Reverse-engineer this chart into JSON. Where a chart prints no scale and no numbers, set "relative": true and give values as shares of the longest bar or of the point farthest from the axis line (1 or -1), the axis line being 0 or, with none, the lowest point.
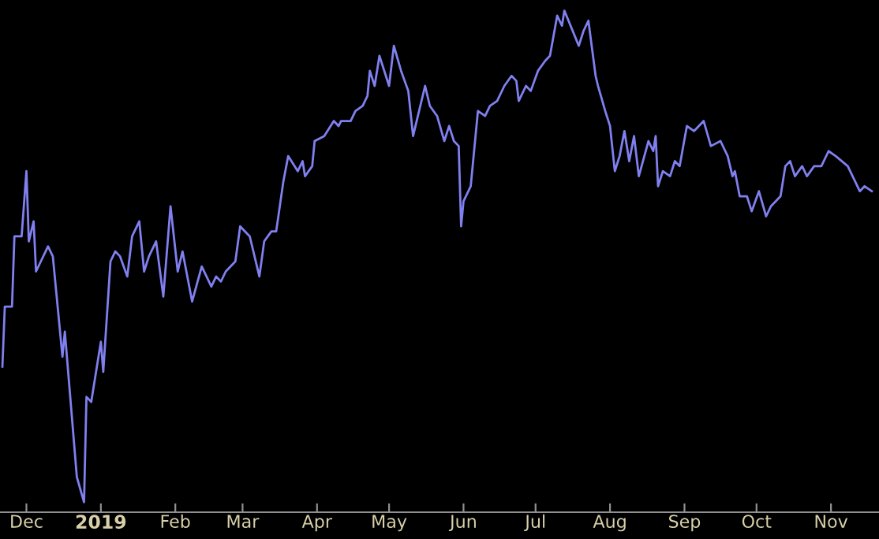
{
  "chart_data": {
    "type": "line",
    "relative": true,
    "color": "#8080f0",
    "grid": false,
    "legend": false,
    "tick_labels": "x",
    "line_style": "solid",
    "marker": "none",
    "xlim": [
      "2018-11-20",
      "2019-11-21"
    ],
    "xticks": [
      {
        "value": "2018-12-01",
        "label": "Dec"
      },
      {
        "value": "2019-01-01",
        "label": "2019"
      },
      {
        "value": "2019-02-01",
        "label": "Feb"
      },
      {
        "value": "2019-03-01",
        "label": "Mar"
      },
      {
        "value": "2019-04-01",
        "label": "Apr"
      },
      {
        "value": "2019-05-01",
        "label": "May"
      },
      {
        "value": "2019-06-01",
        "label": "Jun"
      },
      {
        "value": "2019-07-01",
        "label": "Jul"
      },
      {
        "value": "2019-08-01",
        "label": "Aug"
      },
      {
        "value": "2019-09-01",
        "label": "Sep"
      },
      {
        "value": "2019-10-01",
        "label": "Oct"
      },
      {
        "value": "2019-11-01",
        "label": "Nov"
      }
    ],
    "x": [
      "2018-11-21",
      "2018-11-22",
      "2018-11-25",
      "2018-11-26",
      "2018-11-29",
      "2018-12-01",
      "2018-12-02",
      "2018-12-04",
      "2018-12-05",
      "2018-12-07",
      "2018-12-10",
      "2018-12-12",
      "2018-12-16",
      "2018-12-17",
      "2018-12-22",
      "2018-12-25",
      "2018-12-26",
      "2018-12-28",
      "2019-01-01",
      "2019-01-02",
      "2019-01-05",
      "2019-01-07",
      "2019-01-09",
      "2019-01-12",
      "2019-01-14",
      "2019-01-17",
      "2019-01-19",
      "2019-01-21",
      "2019-01-24",
      "2019-01-27",
      "2019-01-30",
      "2019-02-02",
      "2019-02-04",
      "2019-02-08",
      "2019-02-12",
      "2019-02-16",
      "2019-02-18",
      "2019-02-20",
      "2019-02-22",
      "2019-02-26",
      "2019-02-28",
      "2019-03-04",
      "2019-03-08",
      "2019-03-10",
      "2019-03-13",
      "2019-03-15",
      "2019-03-18",
      "2019-03-20",
      "2019-03-24",
      "2019-03-26",
      "2019-03-27",
      "2019-03-30",
      "2019-03-31",
      "2019-04-04",
      "2019-04-08",
      "2019-04-10",
      "2019-04-11",
      "2019-04-15",
      "2019-04-17",
      "2019-04-20",
      "2019-04-22",
      "2019-04-23",
      "2019-04-25",
      "2019-04-27",
      "2019-05-01",
      "2019-05-03",
      "2019-05-06",
      "2019-05-09",
      "2019-05-11",
      "2019-05-16",
      "2019-05-18",
      "2019-05-21",
      "2019-05-24",
      "2019-05-26",
      "2019-05-28",
      "2019-05-30",
      "2019-05-31",
      "2019-06-01",
      "2019-06-04",
      "2019-06-07",
      "2019-06-10",
      "2019-06-12",
      "2019-06-15",
      "2019-06-18",
      "2019-06-21",
      "2019-06-23",
      "2019-06-24",
      "2019-06-27",
      "2019-06-29",
      "2019-07-02",
      "2019-07-05",
      "2019-07-07",
      "2019-07-10",
      "2019-07-12",
      "2019-07-13",
      "2019-07-19",
      "2019-07-21",
      "2019-07-23",
      "2019-07-26",
      "2019-07-27",
      "2019-07-30",
      "2019-08-01",
      "2019-08-03",
      "2019-08-05",
      "2019-08-07",
      "2019-08-09",
      "2019-08-11",
      "2019-08-13",
      "2019-08-17",
      "2019-08-19",
      "2019-08-20",
      "2019-08-21",
      "2019-08-23",
      "2019-08-26",
      "2019-08-28",
      "2019-08-30",
      "2019-09-02",
      "2019-09-05",
      "2019-09-09",
      "2019-09-12",
      "2019-09-16",
      "2019-09-19",
      "2019-09-21",
      "2019-09-22",
      "2019-09-24",
      "2019-09-27",
      "2019-09-29",
      "2019-10-02",
      "2019-10-05",
      "2019-10-07",
      "2019-10-11",
      "2019-10-13",
      "2019-10-15",
      "2019-10-17",
      "2019-10-20",
      "2019-10-22",
      "2019-10-25",
      "2019-10-28",
      "2019-10-31",
      "2019-11-03",
      "2019-11-08",
      "2019-11-11",
      "2019-11-13",
      "2019-11-15",
      "2019-11-18"
    ],
    "values": [
      0.29,
      0.41,
      0.41,
      0.55,
      0.55,
      0.68,
      0.54,
      0.58,
      0.48,
      0.5,
      0.53,
      0.51,
      0.31,
      0.36,
      0.07,
      0.02,
      0.23,
      0.22,
      0.34,
      0.28,
      0.5,
      0.52,
      0.51,
      0.47,
      0.55,
      0.58,
      0.48,
      0.51,
      0.54,
      0.43,
      0.61,
      0.48,
      0.52,
      0.42,
      0.49,
      0.45,
      0.47,
      0.46,
      0.48,
      0.5,
      0.57,
      0.55,
      0.47,
      0.54,
      0.56,
      0.56,
      0.66,
      0.71,
      0.68,
      0.7,
      0.67,
      0.69,
      0.74,
      0.75,
      0.78,
      0.77,
      0.78,
      0.78,
      0.8,
      0.81,
      0.83,
      0.88,
      0.85,
      0.91,
      0.85,
      0.93,
      0.88,
      0.84,
      0.75,
      0.85,
      0.81,
      0.79,
      0.74,
      0.77,
      0.74,
      0.73,
      0.57,
      0.62,
      0.65,
      0.8,
      0.79,
      0.81,
      0.82,
      0.85,
      0.87,
      0.86,
      0.82,
      0.85,
      0.84,
      0.88,
      0.9,
      0.91,
      0.99,
      0.97,
      1,
      0.93,
      0.96,
      0.98,
      0.87,
      0.85,
      0.8,
      0.77,
      0.68,
      0.71,
      0.76,
      0.7,
      0.75,
      0.67,
      0.74,
      0.72,
      0.75,
      0.65,
      0.68,
      0.67,
      0.7,
      0.69,
      0.77,
      0.76,
      0.78,
      0.73,
      0.74,
      0.71,
      0.67,
      0.68,
      0.63,
      0.63,
      0.6,
      0.64,
      0.59,
      0.61,
      0.63,
      0.69,
      0.7,
      0.67,
      0.69,
      0.67,
      0.69,
      0.69,
      0.72,
      0.71,
      0.69,
      0.66,
      0.64,
      0.65,
      0.64
    ]
  }
}
